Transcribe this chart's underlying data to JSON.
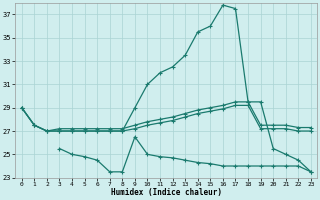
{
  "xlabel": "Humidex (Indice chaleur)",
  "x": [
    0,
    1,
    2,
    3,
    4,
    5,
    6,
    7,
    8,
    9,
    10,
    11,
    12,
    13,
    14,
    15,
    16,
    17,
    18,
    19,
    20,
    21,
    22,
    23
  ],
  "line_peak": [
    29.0,
    27.5,
    27.0,
    27.0,
    27.0,
    27.0,
    27.0,
    27.0,
    27.0,
    29.0,
    31.0,
    32.0,
    32.5,
    33.5,
    35.5,
    36.0,
    37.8,
    37.5,
    29.5,
    29.5,
    25.5,
    25.0,
    24.5,
    23.5
  ],
  "line_upper": [
    29.0,
    27.5,
    27.0,
    27.2,
    27.2,
    27.2,
    27.2,
    27.2,
    27.2,
    27.5,
    27.8,
    28.0,
    28.2,
    28.5,
    28.8,
    29.0,
    29.2,
    29.5,
    29.5,
    27.5,
    27.5,
    27.5,
    27.3,
    27.3
  ],
  "line_mid": [
    29.0,
    27.5,
    27.0,
    27.0,
    27.0,
    27.0,
    27.0,
    27.0,
    27.0,
    27.2,
    27.5,
    27.7,
    27.9,
    28.2,
    28.5,
    28.7,
    28.9,
    29.2,
    29.2,
    27.2,
    27.2,
    27.2,
    27.0,
    27.0
  ],
  "line_lower": [
    null,
    null,
    null,
    25.5,
    25.0,
    24.8,
    24.5,
    23.5,
    23.5,
    26.5,
    25.0,
    24.8,
    24.7,
    24.5,
    24.3,
    24.2,
    24.0,
    24.0,
    24.0,
    24.0,
    24.0,
    24.0,
    24.0,
    23.5
  ],
  "color": "#1a7a6e",
  "bg_color": "#d0eeee",
  "grid_color": "#aad4d4",
  "ylim": [
    23,
    38
  ],
  "yticks": [
    23,
    25,
    27,
    29,
    31,
    33,
    35,
    37
  ],
  "xticks": [
    0,
    1,
    2,
    3,
    4,
    5,
    6,
    7,
    8,
    9,
    10,
    11,
    12,
    13,
    14,
    15,
    16,
    17,
    18,
    19,
    20,
    21,
    22,
    23
  ]
}
